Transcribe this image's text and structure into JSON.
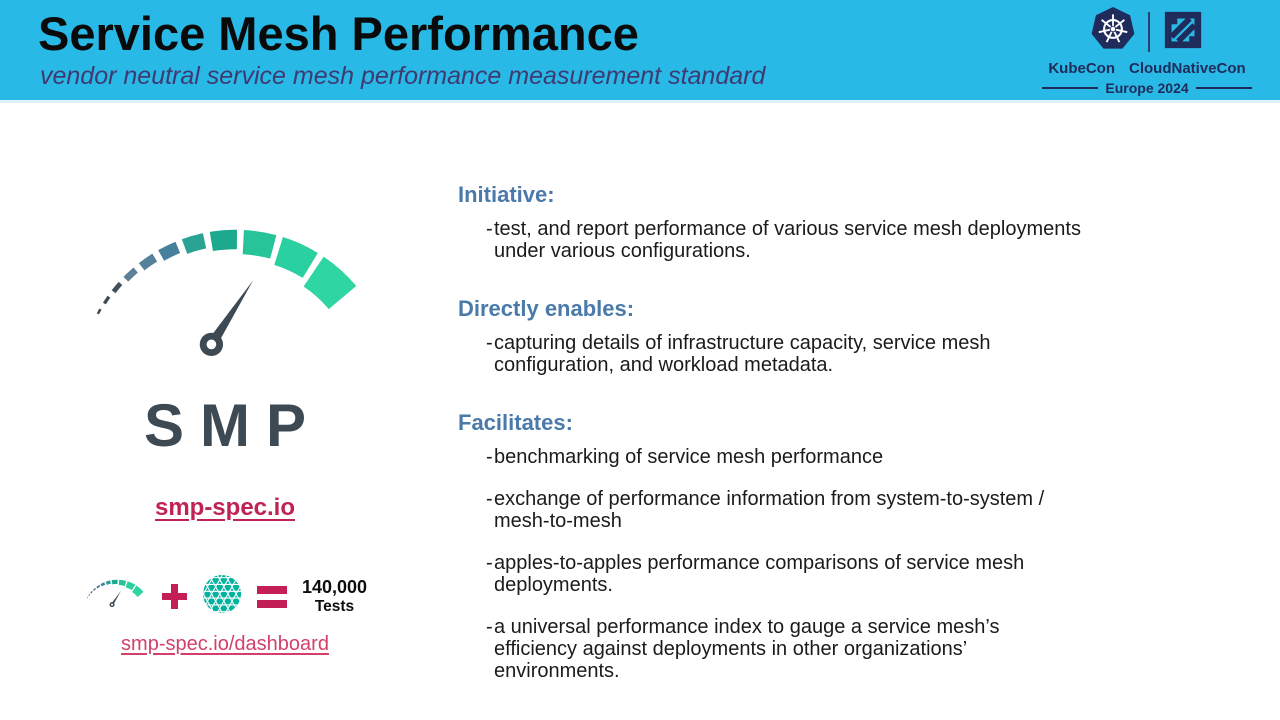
{
  "header": {
    "title": "Service Mesh Performance",
    "subtitle": "vendor neutral service mesh performance measurement standard"
  },
  "event": {
    "left_name": "KubeCon",
    "right_name": "CloudNativeCon",
    "edition": "Europe 2024"
  },
  "left_panel": {
    "wordmark": "SMP",
    "spec_link": "smp-spec.io",
    "equation_result_value": "140,000",
    "equation_result_unit": "Tests",
    "dashboard_link": "smp-spec.io/dashboard"
  },
  "bullet_marker": "-",
  "sections": [
    {
      "heading": "Initiative:",
      "bullets": [
        "test, and report performance of various service mesh deployments under various configurations."
      ]
    },
    {
      "heading": "Directly enables:",
      "bullets": [
        "capturing details of infrastructure capacity, service mesh configuration, and workload metadata."
      ]
    },
    {
      "heading": "Facilitates:",
      "bullets": [
        "benchmarking of service mesh performance",
        "exchange of performance information from system-to-system / mesh-to-mesh",
        "apples-to-apples performance comparisons of service mesh deployments.",
        "a universal performance index to gauge a service mesh’s efficiency against deployments in other organizations’ environments."
      ]
    }
  ],
  "icons": {
    "gauge_logo": "speedometer-gauge-icon",
    "meshery": "mesh-circle-icon",
    "kubecon": "kubernetes-helm-icon",
    "cloudnativecon": "cncf-square-icon"
  },
  "colors": {
    "header_bg": "#29b9e6",
    "subtitle": "#3e3a72",
    "navy_logo": "#1f2b5b",
    "section_heading": "#4a7aa9",
    "body_text": "#1b1b1b",
    "link_primary": "#c02351",
    "link_dashboard": "#d43f67",
    "crimson_operator": "#c41e56",
    "gauge_green": "#2fd6a4",
    "gauge_teal": "#1ca98f",
    "gauge_bluegray": "#5d8096",
    "needle": "#3d4a53",
    "meshery_teal": "#00b39f"
  }
}
